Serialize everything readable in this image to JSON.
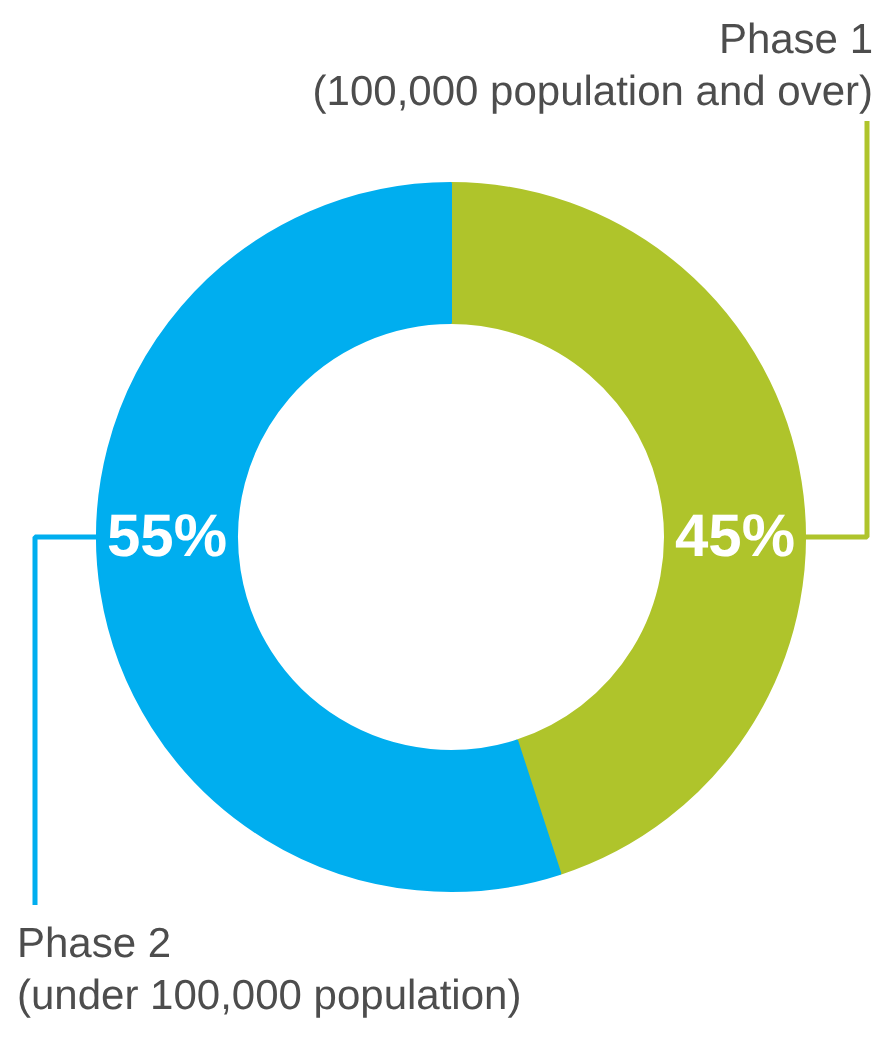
{
  "chart_data": {
    "type": "donut",
    "categories": [
      "Phase 1\n(100,000 population and over)",
      "Phase 2\n(under 100,000 population)"
    ],
    "values": [
      45,
      55
    ],
    "colors": [
      "#afc42b",
      "#00aeef"
    ],
    "value_labels": [
      "45%",
      "55%"
    ]
  }
}
